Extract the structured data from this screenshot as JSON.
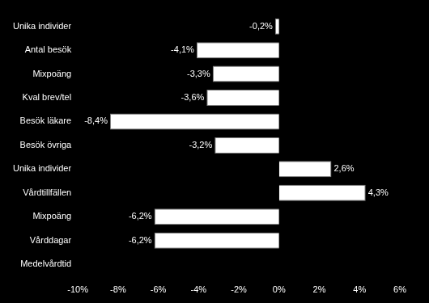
{
  "chart_data": {
    "type": "bar",
    "orientation": "horizontal",
    "categories": [
      "Unika individer",
      "Antal besök",
      "Mixpoäng",
      "Kval brev/tel",
      "Besök läkare",
      "Besök övriga",
      "Unika individer",
      "Vårdtillfällen",
      "Mixpoäng",
      "Vårddagar",
      "Medelvårdtid"
    ],
    "values": [
      -0.2,
      -4.1,
      -3.3,
      -3.6,
      -8.4,
      -3.2,
      2.6,
      4.3,
      -6.2,
      -6.2,
      null
    ],
    "value_labels": [
      "-0,2%",
      "-4,1%",
      "-3,3%",
      "-3,6%",
      "-8,4%",
      "-3,2%",
      "2,6%",
      "4,3%",
      "-6,2%",
      "-6,2%",
      null
    ],
    "color": "#ffffff",
    "data_labels": true,
    "grid": false,
    "xlim": [
      -10,
      6
    ],
    "xticks": [
      {
        "value": -10,
        "label": "-10%"
      },
      {
        "value": -8,
        "label": "-8%"
      },
      {
        "value": -6,
        "label": "-6%"
      },
      {
        "value": -4,
        "label": "-4%"
      },
      {
        "value": -2,
        "label": "-2%"
      },
      {
        "value": 0,
        "label": "0%"
      },
      {
        "value": 2,
        "label": "2%"
      },
      {
        "value": 4,
        "label": "4%"
      },
      {
        "value": 6,
        "label": "6%"
      }
    ]
  }
}
